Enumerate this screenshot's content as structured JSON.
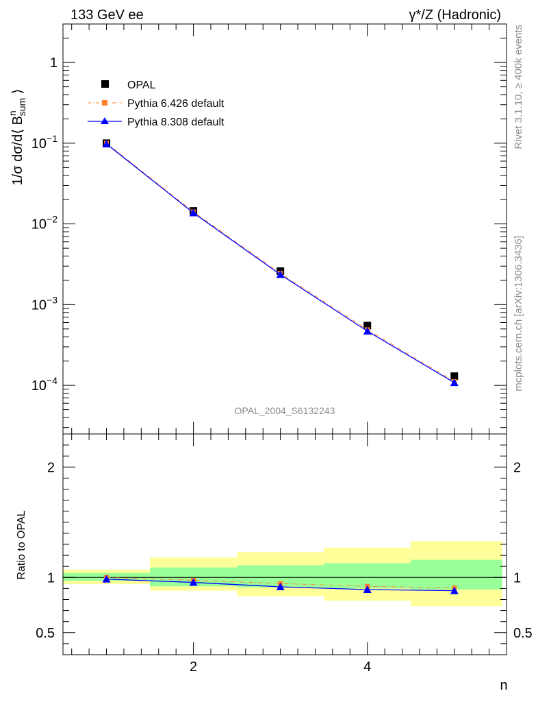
{
  "header": {
    "left": "133 GeV ee",
    "right": "γ*/Z (Hadronic)"
  },
  "side": {
    "rivet": "Rivet 3.1.10, ≥ 400k events",
    "mcplots": "mcplots.cern.ch [arXiv:1306.3436]"
  },
  "watermark": "OPAL_2004_S6132243",
  "chart_data": [
    {
      "type": "scatter",
      "panel": "main",
      "ylabel": "1/σ dσ/d⟨ B^n_sum ⟩",
      "yscale": "log",
      "ylim": [
        2.5e-05,
        3.0
      ],
      "xlim": [
        0.5,
        5.6
      ],
      "y_ticks": [
        "1",
        "10^-1",
        "10^-2",
        "10^-3",
        "10^-4"
      ],
      "x": [
        1,
        2,
        3,
        4,
        5
      ],
      "series": [
        {
          "name": "OPAL",
          "values": [
            0.1,
            0.0145,
            0.0026,
            0.00055,
            0.00013
          ],
          "color": "#000000",
          "marker": "square"
        },
        {
          "name": "Pythia 6.426 default",
          "values": [
            0.1,
            0.0141,
            0.00245,
            0.00049,
            0.000112
          ],
          "color": "#ff7f2a",
          "marker": "square",
          "line": "dash-dot"
        },
        {
          "name": "Pythia 8.308 default",
          "values": [
            0.098,
            0.0137,
            0.00236,
            0.00047,
            0.000108
          ],
          "color": "#0000ff",
          "marker": "triangle",
          "line": "solid"
        }
      ]
    },
    {
      "type": "line",
      "panel": "ratio",
      "ylabel": "Ratio to OPAL",
      "ylim": [
        0.3,
        2.3
      ],
      "xlim": [
        0.5,
        5.6
      ],
      "y_ticks": [
        "0.5",
        "1",
        "2"
      ],
      "x_ticks": [
        "2",
        "4"
      ],
      "xlabel": "n",
      "x": [
        1,
        2,
        3,
        4,
        5
      ],
      "bands": {
        "bin_edges": [
          0.5,
          1.5,
          2.5,
          3.5,
          4.5,
          5.55
        ],
        "green": [
          [
            0.97,
            1.04
          ],
          [
            0.92,
            1.09
          ],
          [
            0.91,
            1.11
          ],
          [
            0.9,
            1.13
          ],
          [
            0.89,
            1.16
          ]
        ],
        "yellow": [
          [
            0.94,
            1.07
          ],
          [
            0.88,
            1.18
          ],
          [
            0.83,
            1.23
          ],
          [
            0.79,
            1.27
          ],
          [
            0.74,
            1.33
          ]
        ]
      },
      "series": [
        {
          "name": "Pythia 6.426 default",
          "values": [
            1.0,
            0.975,
            0.945,
            0.92,
            0.905
          ],
          "color": "#ff7f2a",
          "marker": "square",
          "line": "dash-dot"
        },
        {
          "name": "Pythia 8.308 default",
          "values": [
            0.985,
            0.955,
            0.915,
            0.89,
            0.88
          ],
          "color": "#0000ff",
          "marker": "triangle",
          "line": "solid"
        }
      ]
    }
  ]
}
